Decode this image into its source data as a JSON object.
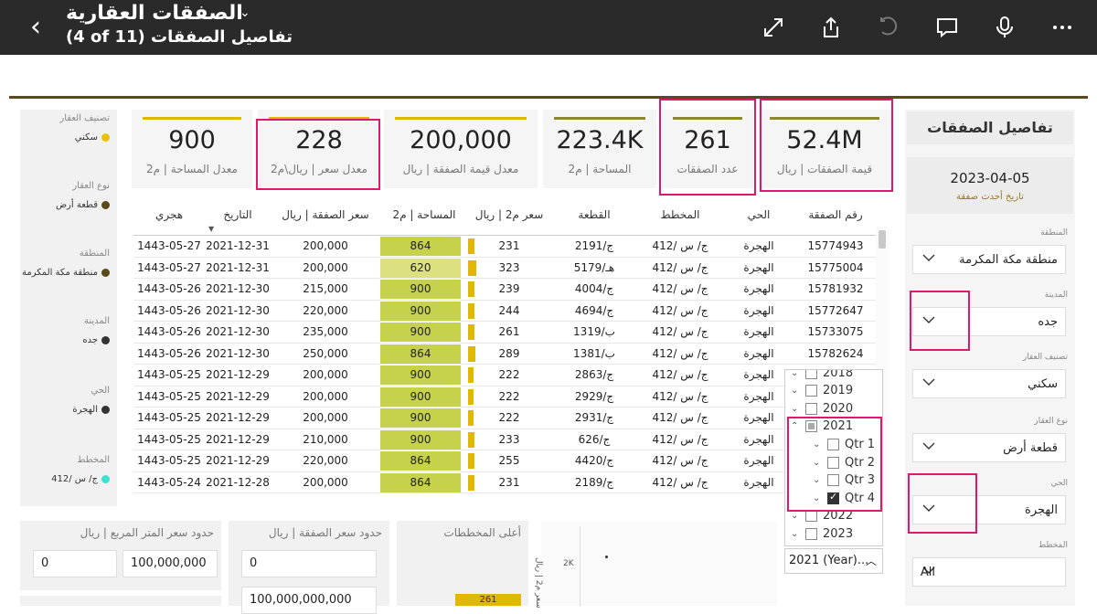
{
  "header": {
    "title": "الصفقات العقارية",
    "subtitle": "(4 of 11) تفاصيل الصفقات"
  },
  "left_filters": [
    {
      "title": "تصنيف العقار",
      "value": "سكني",
      "color": "#e8c20a"
    },
    {
      "title": "نوع العقار",
      "value": "قطعة أرض",
      "color": "#5a4a1a"
    },
    {
      "title": "المنطقة",
      "value": "منطقة مكة المكرمة",
      "color": "#5a4a1a"
    },
    {
      "title": "المدينة",
      "value": "جده",
      "color": "#333333"
    },
    {
      "title": "الحي",
      "value": "الهجرة",
      "color": "#333333"
    },
    {
      "title": "المخطط",
      "value": "ج/ س /412",
      "color": "#40e0d0"
    }
  ],
  "cards": [
    {
      "value": "900",
      "label": "معدل المساحة | م2",
      "bar": "#e0b800"
    },
    {
      "value": "228",
      "label": "معدل سعر | ريال\\م2",
      "bar": "#e0b800"
    },
    {
      "value": "200,000",
      "label": "معدل قيمة الصفقة | ريال",
      "bar": "#e0b800"
    },
    {
      "value": "223.4K",
      "label": "المساحة | م2",
      "bar": "#8a8a2a"
    },
    {
      "value": "261",
      "label": "عدد الصفقات",
      "bar": "#8a8a2a"
    },
    {
      "value": "52.4M",
      "label": "قيمة الصفقات | ريال",
      "bar": "#8a8a2a"
    }
  ],
  "right_panel": {
    "title": "تفاصيل الصفقات",
    "date_value": "2023-04-05",
    "date_label": "تاريخ أحدث صفقة",
    "slicers": [
      {
        "title": "المنطقة",
        "value": "منطقة مكة المكرمة"
      },
      {
        "title": "المدينة",
        "value": "جده"
      },
      {
        "title": "تصنيف العقار",
        "value": "سكني"
      },
      {
        "title": "نوع العقار",
        "value": "قطعة أرض"
      },
      {
        "title": "الحي",
        "value": "الهجرة"
      },
      {
        "title": "المخطط",
        "value": "All"
      }
    ]
  },
  "table": {
    "columns": [
      "هجري",
      "التاريخ",
      "سعر الصفقة | ريال",
      "المساحة | م2",
      "سعر م2 | ريال",
      "القطعة",
      "المخطط",
      "الحي",
      "رقم الصفقة"
    ],
    "rows": [
      {
        "hijri": "1443-05-27",
        "date": "2021-12-31",
        "price": "200,000",
        "area": "864",
        "area_frac": 0.85,
        "ppm": "231",
        "ppm_frac": 0.3,
        "plot": "ج/2191",
        "scheme": "ج/ س /412",
        "district": "الهجرة",
        "id": "15774943"
      },
      {
        "hijri": "1443-05-27",
        "date": "2021-12-31",
        "price": "200,000",
        "area": "620",
        "area_frac": 0.45,
        "ppm": "323",
        "ppm_frac": 0.42,
        "plot": "هـ/5179",
        "scheme": "ج/ س /412",
        "district": "الهجرة",
        "id": "15775004"
      },
      {
        "hijri": "1443-05-26",
        "date": "2021-12-30",
        "price": "215,000",
        "area": "900",
        "area_frac": 0.9,
        "ppm": "239",
        "ppm_frac": 0.31,
        "plot": "ج/4004",
        "scheme": "ج/ س /412",
        "district": "الهجرة",
        "id": "15781932"
      },
      {
        "hijri": "1443-05-26",
        "date": "2021-12-30",
        "price": "220,000",
        "area": "900",
        "area_frac": 0.9,
        "ppm": "244",
        "ppm_frac": 0.32,
        "plot": "ج/4694",
        "scheme": "ج/ س /412",
        "district": "الهجرة",
        "id": "15772647"
      },
      {
        "hijri": "1443-05-26",
        "date": "2021-12-30",
        "price": "235,000",
        "area": "900",
        "area_frac": 0.9,
        "ppm": "261",
        "ppm_frac": 0.34,
        "plot": "ب/1319",
        "scheme": "ج/ س /412",
        "district": "الهجرة",
        "id": "15733075"
      },
      {
        "hijri": "1443-05-26",
        "date": "2021-12-30",
        "price": "250,000",
        "area": "864",
        "area_frac": 0.85,
        "ppm": "289",
        "ppm_frac": 0.37,
        "plot": "ب/1381",
        "scheme": "ج/ س /412",
        "district": "الهجرة",
        "id": "15782624"
      },
      {
        "hijri": "1443-05-25",
        "date": "2021-12-29",
        "price": "200,000",
        "area": "900",
        "area_frac": 0.9,
        "ppm": "222",
        "ppm_frac": 0.29,
        "plot": "ج/2863",
        "scheme": "ج/ س /412",
        "district": "الهجرة",
        "id": ""
      },
      {
        "hijri": "1443-05-25",
        "date": "2021-12-29",
        "price": "200,000",
        "area": "900",
        "area_frac": 0.9,
        "ppm": "222",
        "ppm_frac": 0.29,
        "plot": "ج/2929",
        "scheme": "ج/ س /412",
        "district": "الهجرة",
        "id": ""
      },
      {
        "hijri": "1443-05-25",
        "date": "2021-12-29",
        "price": "200,000",
        "area": "900",
        "area_frac": 0.9,
        "ppm": "222",
        "ppm_frac": 0.29,
        "plot": "ج/2931",
        "scheme": "ج/ س /412",
        "district": "الهجرة",
        "id": ""
      },
      {
        "hijri": "1443-05-25",
        "date": "2021-12-29",
        "price": "210,000",
        "area": "900",
        "area_frac": 0.9,
        "ppm": "233",
        "ppm_frac": 0.3,
        "plot": "ج/626",
        "scheme": "ج/ س /412",
        "district": "الهجرة",
        "id": ""
      },
      {
        "hijri": "1443-05-25",
        "date": "2021-12-29",
        "price": "220,000",
        "area": "864",
        "area_frac": 0.85,
        "ppm": "255",
        "ppm_frac": 0.33,
        "plot": "ج/4420",
        "scheme": "ج/ س /412",
        "district": "الهجرة",
        "id": ""
      },
      {
        "hijri": "1443-05-24",
        "date": "2021-12-28",
        "price": "200,000",
        "area": "864",
        "area_frac": 0.85,
        "ppm": "231",
        "ppm_frac": 0.3,
        "plot": "ج/2189",
        "scheme": "ج/ س /412",
        "district": "الهجرة",
        "id": ""
      }
    ]
  },
  "year_dropdown": {
    "items": [
      {
        "label": "2018",
        "state": "none",
        "indent": 0,
        "chevron": "⌄"
      },
      {
        "label": "2019",
        "state": "none",
        "indent": 0,
        "chevron": "⌄"
      },
      {
        "label": "2020",
        "state": "none",
        "indent": 0,
        "chevron": "⌄"
      },
      {
        "label": "2021",
        "state": "part",
        "indent": 0,
        "chevron": "⌃"
      },
      {
        "label": "Qtr 1",
        "state": "none",
        "indent": 1,
        "chevron": "⌄"
      },
      {
        "label": "Qtr 2",
        "state": "none",
        "indent": 1,
        "chevron": "⌄"
      },
      {
        "label": "Qtr 3",
        "state": "none",
        "indent": 1,
        "chevron": "⌄"
      },
      {
        "label": "Qtr 4",
        "state": "chk",
        "indent": 1,
        "chevron": "⌄"
      },
      {
        "label": "2022",
        "state": "none",
        "indent": 0,
        "chevron": "⌄"
      },
      {
        "label": "2023",
        "state": "none",
        "indent": 0,
        "chevron": "⌄"
      }
    ],
    "selected": "2021 (Year)..."
  },
  "bottom": {
    "ppm_limits_title": "حدود سعر المتر المربع | ريال",
    "ppm_min": "0",
    "ppm_max": "100,000,000",
    "price_limits_title": "حدود سعر الصفقة | ريال",
    "price_min": "0",
    "price_max": "100,000,000,000",
    "top_schemes_title": "أعلى المخططات",
    "top_scheme_value": "261",
    "chart_tick": "2K",
    "chart_ylabel": "سعر م2 | ريال"
  }
}
